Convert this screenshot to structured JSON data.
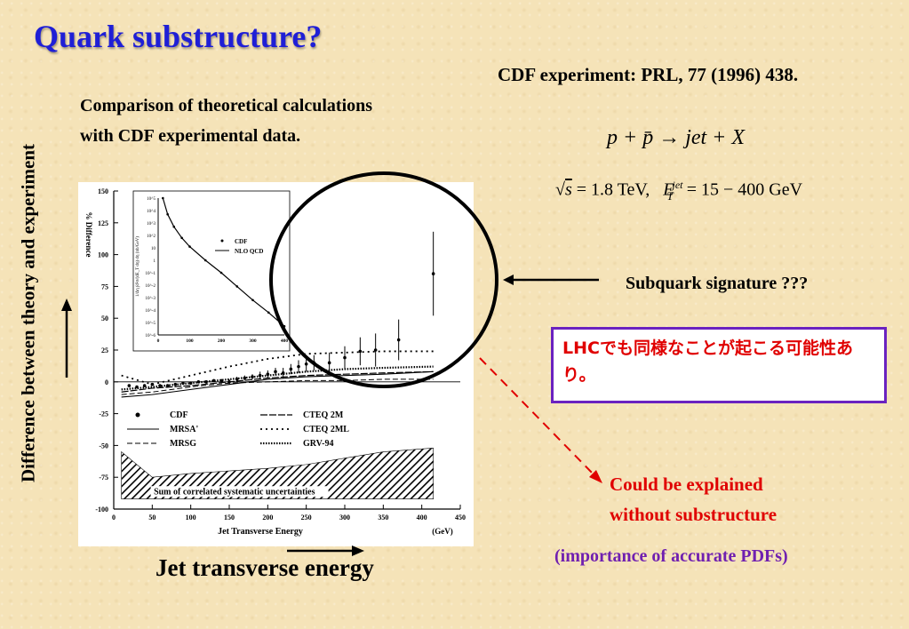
{
  "slide": {
    "title": "Quark substructure?",
    "reference": "CDF experiment: PRL, 77 (1996) 438.",
    "comparison_line1": "Comparison of theoretical calculations",
    "comparison_line2": "with CDF experimental data.",
    "reaction": "p + p̄ → jet + X",
    "energy_sqrt": "s",
    "energy_value": "= 1.8  TeV,",
    "et_symbol": "E",
    "et_sup": "jet",
    "et_sub": "T",
    "et_range": "= 15 − 400 GeV",
    "y_axis_caption": "Difference between theory and experiment",
    "x_axis_caption": "Jet transverse energy",
    "subquark_label": "Subquark signature ???",
    "lhc_note": "LHCでも同様なことが起こる可能性あり。",
    "could_line1": "Could be explained",
    "could_line2": "without substructure",
    "pdf_note": "(importance of accurate PDFs)"
  },
  "chart_data": [
    {
      "type": "scatter",
      "xlabel": "Jet Transverse Energy",
      "xunit": "(GeV)",
      "ylabel": "% Difference",
      "xlim": [
        0,
        450
      ],
      "ylim": [
        -100,
        150
      ],
      "xticks": [
        0,
        50,
        100,
        150,
        200,
        250,
        300,
        350,
        400,
        450
      ],
      "yticks": [
        -100,
        -75,
        -50,
        -25,
        0,
        25,
        50,
        75,
        100,
        125,
        150
      ],
      "band_label": "Sum of correlated systematic uncertainties",
      "legend": [
        {
          "label": "CDF",
          "style": "dot"
        },
        {
          "label": "MRSA'",
          "style": "solid"
        },
        {
          "label": "MRSG",
          "style": "dashed"
        },
        {
          "label": "CTEQ 2M",
          "style": "cross"
        },
        {
          "label": "CTEQ 2ML",
          "style": "dotted"
        },
        {
          "label": "GRV-94",
          "style": "dense-dotted"
        }
      ],
      "series": [
        {
          "name": "CDF",
          "x": [
            20,
            30,
            40,
            50,
            60,
            70,
            80,
            90,
            100,
            110,
            120,
            130,
            140,
            150,
            160,
            170,
            180,
            190,
            200,
            210,
            220,
            230,
            240,
            250,
            260,
            280,
            300,
            320,
            340,
            370,
            415
          ],
          "y": [
            -3,
            -4,
            -3,
            -2,
            -3,
            -3,
            -2,
            -1,
            -1,
            0,
            0,
            1,
            1,
            0,
            2,
            3,
            4,
            5,
            6,
            8,
            7,
            10,
            12,
            14,
            15,
            15,
            19,
            24,
            25,
            33,
            85
          ],
          "err": [
            1,
            1,
            1,
            1,
            1,
            1,
            1,
            1,
            1,
            1,
            1,
            1,
            1,
            2,
            2,
            2,
            2,
            3,
            3,
            3,
            4,
            4,
            5,
            6,
            6,
            8,
            9,
            11,
            13,
            16,
            33
          ]
        },
        {
          "name": "MRSA'",
          "x": [
            10,
            50,
            100,
            150,
            200,
            250,
            300,
            350,
            415
          ],
          "y": [
            -12,
            -10,
            -6,
            -2,
            2,
            4,
            5,
            6,
            8
          ]
        },
        {
          "name": "MRSG",
          "x": [
            10,
            50,
            100,
            150,
            200,
            250,
            300,
            350,
            415
          ],
          "y": [
            -10,
            -8,
            -4,
            -1,
            0,
            1,
            1,
            2,
            2
          ]
        },
        {
          "name": "CTEQ 2M",
          "x": [
            10,
            50,
            100,
            150,
            200,
            250,
            300,
            350,
            415
          ],
          "y": [
            -8,
            -5,
            -3,
            0,
            3,
            5,
            6,
            7,
            8
          ]
        },
        {
          "name": "CTEQ 2ML",
          "x": [
            10,
            50,
            100,
            150,
            200,
            250,
            300,
            350,
            415
          ],
          "y": [
            5,
            -2,
            5,
            12,
            18,
            22,
            23,
            24,
            24
          ]
        },
        {
          "name": "GRV-94",
          "x": [
            10,
            50,
            100,
            150,
            200,
            250,
            300,
            350,
            415
          ],
          "y": [
            -6,
            -4,
            -1,
            2,
            5,
            8,
            10,
            11,
            12
          ]
        }
      ],
      "systematic_band": {
        "x": [
          10,
          50,
          100,
          150,
          200,
          250,
          300,
          350,
          415
        ],
        "upper": [
          -55,
          -75,
          -72,
          -70,
          -68,
          -65,
          -60,
          -55,
          -52
        ]
      }
    },
    {
      "type": "line",
      "log_y": true,
      "xlim": [
        0,
        400
      ],
      "xticks": [
        0,
        100,
        200,
        300,
        400
      ],
      "yticks": [
        "10^-6",
        "10^-5",
        "10^-4",
        "10^-3",
        "10^-2",
        "10^-1",
        "1",
        "10",
        "10^2",
        "10^3",
        "10^4",
        "10^5"
      ],
      "ylabel": "1/Δη ∫d²σ/(dE_T dη) dη (nb/GeV)",
      "legend": [
        {
          "label": "CDF"
        },
        {
          "label": "NLO QCD"
        }
      ],
      "series": [
        {
          "name": "NLO QCD",
          "x": [
            15,
            30,
            50,
            75,
            100,
            150,
            200,
            250,
            300,
            350,
            400
          ],
          "exp10": [
            5,
            3.7,
            2.7,
            1.8,
            1.1,
            0,
            -1,
            -2.1,
            -3.2,
            -4.2,
            -5.3
          ]
        }
      ]
    }
  ]
}
